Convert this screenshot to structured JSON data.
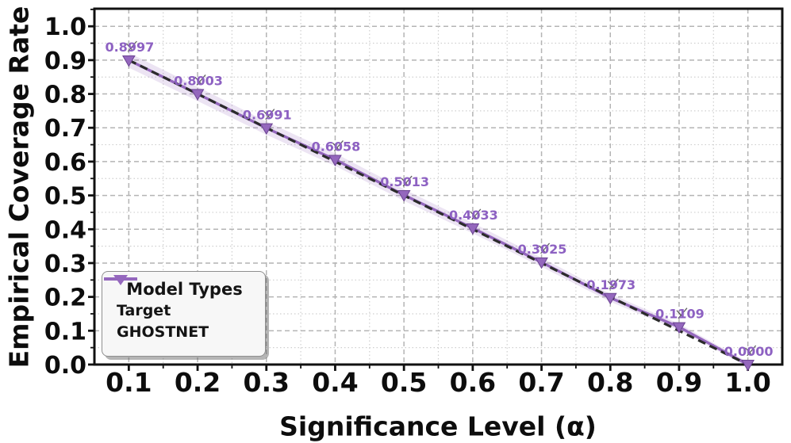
{
  "colors": {
    "target_line": "#2b2b2b",
    "ghostnet_line": "#9467bd",
    "ghostnet_marker_edge": "#6b4392",
    "ghostnet_label_text": "#8d61c2",
    "band_fill": "#9467bd",
    "grid_major": "#b4b4b4",
    "grid_minor": "#cfcfcf",
    "spine": "#111111",
    "tick_label": "#0d0d0d"
  },
  "legend": {
    "title": "Model Types",
    "items": [
      {
        "label": "Target",
        "swatch": "dashed-line",
        "color": "#3f3f3f"
      },
      {
        "label": "GHOSTNET",
        "swatch": "line-triangle-down-marker",
        "color": "#9467bd"
      }
    ]
  },
  "chart_data": {
    "type": "line",
    "xlabel": "Significance Level (α)",
    "ylabel": "Empirical Coverage Rate",
    "x": [
      0.1,
      0.2,
      0.3,
      0.4,
      0.5,
      0.6,
      0.7,
      0.8,
      0.9,
      1.0
    ],
    "xlim": [
      0.05,
      1.05
    ],
    "ylim": [
      0,
      1.052
    ],
    "x_ticks": [
      0.1,
      0.2,
      0.3,
      0.4,
      0.5,
      0.6,
      0.7,
      0.8,
      0.9,
      1.0
    ],
    "x_tick_labels": [
      "0.1",
      "0.2",
      "0.3",
      "0.4",
      "0.5",
      "0.6",
      "0.7",
      "0.8",
      "0.9",
      "1.0"
    ],
    "y_ticks": [
      0.0,
      0.1,
      0.2,
      0.3,
      0.4,
      0.5,
      0.6,
      0.7,
      0.8,
      0.9,
      1.0
    ],
    "y_tick_labels": [
      "0.0",
      "0.1",
      "0.2",
      "0.3",
      "0.4",
      "0.5",
      "0.6",
      "0.7",
      "0.8",
      "0.9",
      "1.0"
    ],
    "grid": true,
    "legend_position": "lower-left",
    "series": [
      {
        "name": "Target",
        "style": "dashed",
        "color": "#2b2b2b",
        "values": [
          0.9,
          0.8,
          0.7,
          0.6,
          0.5,
          0.4,
          0.3,
          0.2,
          0.1,
          0.0
        ]
      },
      {
        "name": "GHOSTNET",
        "style": "solid",
        "marker": "triangle-down",
        "color": "#9467bd",
        "values": [
          0.8997,
          0.8003,
          0.6991,
          0.6058,
          0.5013,
          0.4033,
          0.3025,
          0.1973,
          0.1109,
          0.0
        ],
        "point_labels": [
          "0.8997",
          "0.8003",
          "0.6991",
          "0.6058",
          "0.5013",
          "0.4033",
          "0.3025",
          "0.1973",
          "0.1109",
          "0.0000"
        ],
        "band_halfwidth": [
          0.022,
          0.021,
          0.0197,
          0.0185,
          0.0172,
          0.0154,
          0.0135,
          0.0117,
          0.0098,
          0.0074
        ],
        "band_color": "#9467bd"
      }
    ]
  }
}
